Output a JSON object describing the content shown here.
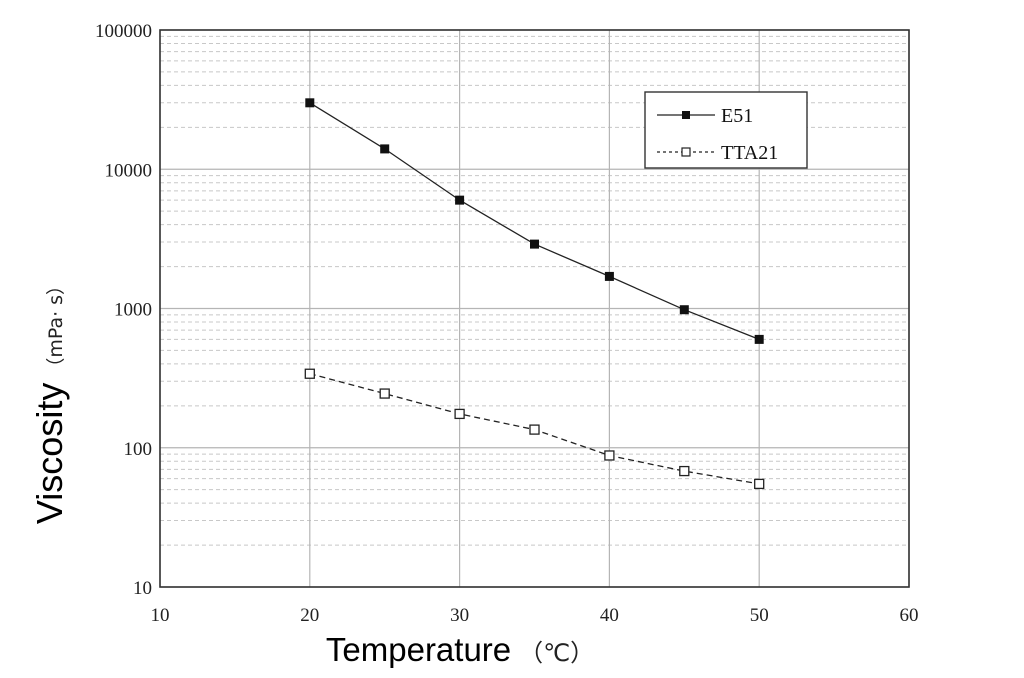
{
  "chart_data": {
    "type": "line",
    "title": "",
    "xlabel": "Temperature",
    "xlabel_unit": "（℃）",
    "ylabel": "Viscosity",
    "ylabel_unit": "（mPa· s）",
    "xlim": [
      10,
      60
    ],
    "ylim": [
      10,
      100000
    ],
    "yscale": "log",
    "grid": true,
    "legend_position": "top-right",
    "x_ticks": [
      "10",
      "20",
      "30",
      "40",
      "50",
      "60"
    ],
    "y_ticks": [
      "10",
      "100",
      "1000",
      "10000",
      "100000"
    ],
    "x": [
      20,
      25,
      30,
      35,
      40,
      45,
      50
    ],
    "series": [
      {
        "name": "E51",
        "marker": "filled-square",
        "line": "solid",
        "values": [
          30000,
          14000,
          6000,
          2900,
          1700,
          980,
          600
        ]
      },
      {
        "name": "TTA21",
        "marker": "open-square",
        "line": "dashed",
        "values": [
          340,
          245,
          175,
          135,
          88,
          68,
          55
        ]
      }
    ],
    "colors": {
      "line": "#222222",
      "grid_major": "#b5b5b5",
      "grid_minor": "#c8c8c8",
      "frame": "#333333"
    }
  }
}
